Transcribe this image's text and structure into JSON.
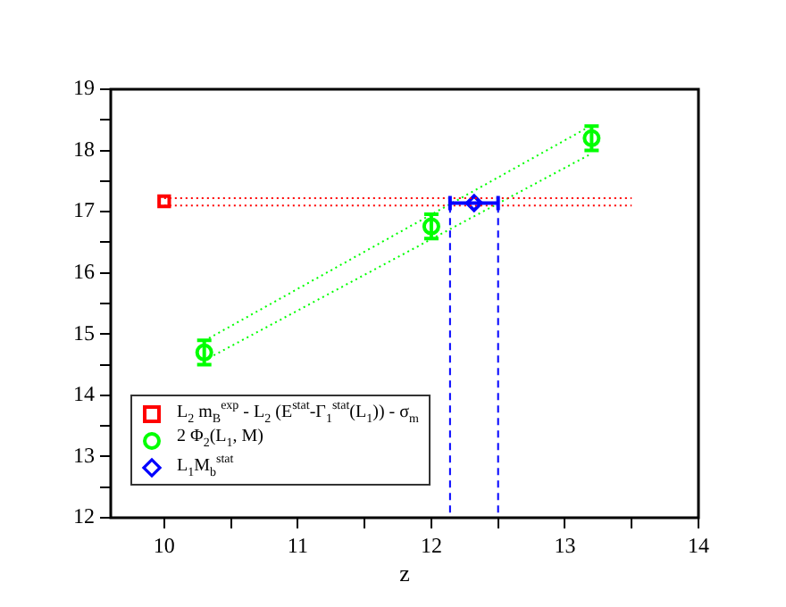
{
  "chart_data": {
    "type": "scatter",
    "xlabel": "z",
    "xlim": [
      9.6,
      14
    ],
    "ylim": [
      12,
      19
    ],
    "xticks": [
      10,
      {
        "value": 10.5,
        "label": null
      },
      11,
      {
        "value": 11.5,
        "label": null
      },
      12,
      {
        "value": 12.5,
        "label": null
      },
      13,
      {
        "value": 13.5,
        "label": null
      },
      14
    ],
    "yticks": [
      12,
      {
        "value": 12.5,
        "label": null
      },
      13,
      {
        "value": 13.5,
        "label": null
      },
      14,
      {
        "value": 14.5,
        "label": null
      },
      15,
      {
        "value": 15.5,
        "label": null
      },
      16,
      {
        "value": 16.5,
        "label": null
      },
      17,
      {
        "value": 17.5,
        "label": null
      },
      18,
      {
        "value": 18.5,
        "label": null
      },
      19
    ],
    "grid": false,
    "legend": "bottom left",
    "series": [
      {
        "name": "L$_{2}$ m$_{B}$$^{exp}$ - L$_{2}$ (E$^{stat}$-Γ$_{1}$$^{stat}$(L$_{1}$)) - σ$_{m}$",
        "color": "#ff0000",
        "marker": "square",
        "x": [
          10
        ],
        "values": [
          17.17
        ]
      },
      {
        "type": "line",
        "color": "#ff0000",
        "line_style": "dotted",
        "marker": "none",
        "x": [
          10,
          13.5
        ],
        "values": [
          17.22,
          17.22
        ]
      },
      {
        "type": "line",
        "color": "#ff0000",
        "line_style": "dotted",
        "marker": "none",
        "x": [
          10,
          13.5
        ],
        "values": [
          17.1,
          17.1
        ]
      },
      {
        "name": "2 Φ$_{2}$(L$_{1}$, M)",
        "color": "#00ff00",
        "marker": "circle",
        "x": [
          10.3,
          12,
          13.2
        ],
        "values": [
          14.7,
          16.76,
          18.2
        ],
        "errors": [
          0.2,
          0.2,
          0.2
        ]
      },
      {
        "type": "line",
        "color": "#00ff00",
        "line_style": "dotted",
        "marker": "none",
        "x": [
          10.3,
          13.2
        ],
        "values": [
          14.89,
          18.41
        ]
      },
      {
        "type": "line",
        "color": "#00ff00",
        "line_style": "dotted",
        "marker": "none",
        "x": [
          10.3,
          13.2
        ],
        "values": [
          14.57,
          17.95
        ]
      },
      {
        "name": "L$_{1}$M$_{b}$$^{stat}$",
        "color": "#0000ff",
        "marker": "diamond",
        "x": [
          12.32
        ],
        "values": [
          17.14
        ],
        "xerrors": [
          [
            12.14,
            12.5
          ]
        ]
      },
      {
        "type": "line",
        "color": "#0000ff",
        "line_style": "dashed",
        "marker": "none",
        "x": [
          12.14,
          12.14
        ],
        "values": [
          17.1,
          12
        ]
      },
      {
        "type": "line",
        "color": "#0000ff",
        "line_style": "dashed",
        "marker": "none",
        "x": [
          12.5,
          12.5
        ],
        "values": [
          17.1,
          12
        ]
      }
    ]
  }
}
